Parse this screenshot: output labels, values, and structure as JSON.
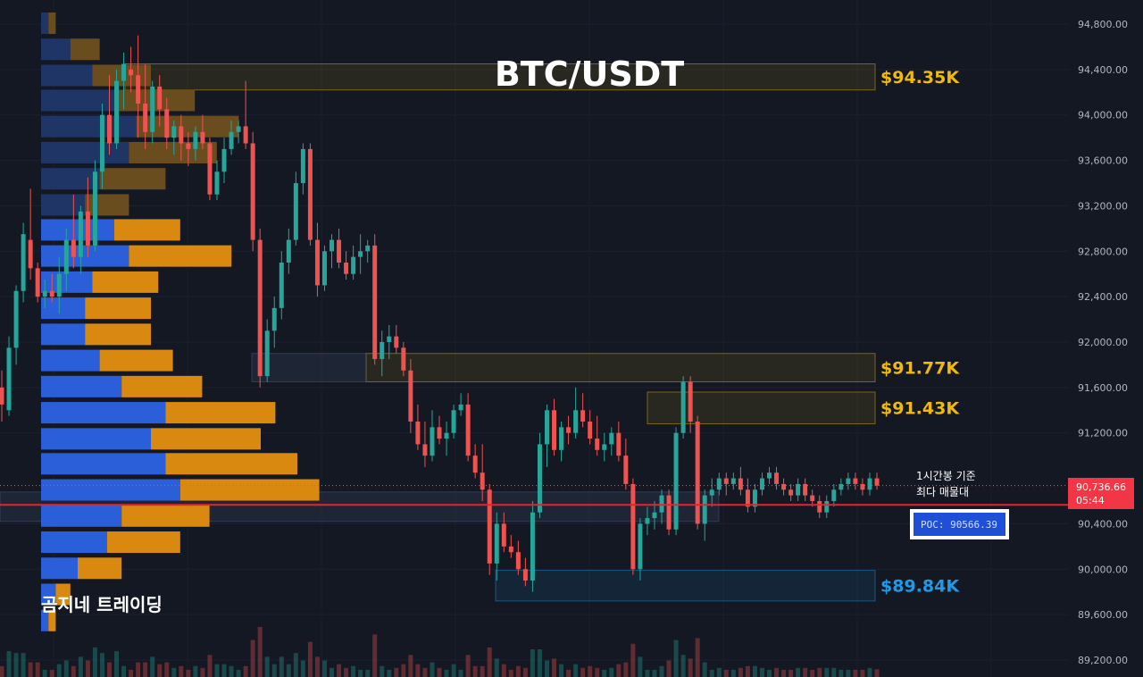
{
  "chart_data": {
    "type": "candlestick",
    "title": "BTC/USDT",
    "watermark": "곰지네 트레이딩",
    "ylim": [
      89000,
      95000
    ],
    "y_ticks": [
      {
        "value": 94800,
        "label": "94,800.00"
      },
      {
        "value": 94400,
        "label": "94,400.00"
      },
      {
        "value": 94000,
        "label": "94,000.00"
      },
      {
        "value": 93600,
        "label": "93,600.00"
      },
      {
        "value": 93200,
        "label": "93,200.00"
      },
      {
        "value": 92800,
        "label": "92,800.00"
      },
      {
        "value": 92400,
        "label": "92,400.00"
      },
      {
        "value": 92000,
        "label": "92,000.00"
      },
      {
        "value": 91600,
        "label": "91,600.00"
      },
      {
        "value": 91200,
        "label": "91,200.00"
      },
      {
        "value": 90400,
        "label": "90,400.00"
      },
      {
        "value": 90000,
        "label": "90,000.00"
      },
      {
        "value": 89600,
        "label": "89,600.00"
      },
      {
        "value": 89200,
        "label": "89,200.00"
      }
    ],
    "current_price": {
      "label": "90,736.66",
      "countdown": "05:44",
      "value": 90736.66
    },
    "poc": {
      "label": "POC: 90566.39",
      "value": 90566.39,
      "annotation_line1": "1시간봉 기준",
      "annotation_line2": "최다 매물대"
    },
    "zones": [
      {
        "label": "$94.35K",
        "top": 94450,
        "bottom": 94220,
        "color": "#f0b90b"
      },
      {
        "label": "$91.77K",
        "top": 91900,
        "bottom": 91650,
        "color": "#f0b90b"
      },
      {
        "label": "$91.43K",
        "top": 91560,
        "bottom": 91280,
        "color": "#f0b90b"
      },
      {
        "label": "$89.84K",
        "top": 89990,
        "bottom": 89720,
        "color": "#1e9be8"
      }
    ],
    "volume_profile": [
      {
        "price": 94800,
        "buy": 1,
        "sell": 1
      },
      {
        "price": 94570,
        "buy": 4,
        "sell": 4
      },
      {
        "price": 94340,
        "buy": 7,
        "sell": 8
      },
      {
        "price": 94120,
        "buy": 10,
        "sell": 11
      },
      {
        "price": 93890,
        "buy": 13,
        "sell": 14
      },
      {
        "price": 93660,
        "buy": 12,
        "sell": 12
      },
      {
        "price": 93430,
        "buy": 8,
        "sell": 9
      },
      {
        "price": 93200,
        "buy": 6,
        "sell": 6
      },
      {
        "price": 92980,
        "buy": 10,
        "sell": 9
      },
      {
        "price": 92750,
        "buy": 12,
        "sell": 14
      },
      {
        "price": 92520,
        "buy": 7,
        "sell": 9
      },
      {
        "price": 92290,
        "buy": 6,
        "sell": 9
      },
      {
        "price": 92060,
        "buy": 6,
        "sell": 9
      },
      {
        "price": 91830,
        "buy": 8,
        "sell": 10
      },
      {
        "price": 91600,
        "buy": 11,
        "sell": 11
      },
      {
        "price": 91370,
        "buy": 17,
        "sell": 15
      },
      {
        "price": 91140,
        "buy": 15,
        "sell": 15
      },
      {
        "price": 90920,
        "buy": 17,
        "sell": 18
      },
      {
        "price": 90690,
        "buy": 19,
        "sell": 19
      },
      {
        "price": 90460,
        "buy": 11,
        "sell": 12
      },
      {
        "price": 90230,
        "buy": 9,
        "sell": 10
      },
      {
        "price": 90000,
        "buy": 5,
        "sell": 6
      },
      {
        "price": 89770,
        "buy": 2,
        "sell": 2
      },
      {
        "price": 89540,
        "buy": 1,
        "sell": 1
      }
    ],
    "candles": [
      [
        91600,
        91750,
        91300,
        91450
      ],
      [
        91400,
        92050,
        91350,
        91950
      ],
      [
        91950,
        92500,
        91800,
        92450
      ],
      [
        92450,
        93050,
        92350,
        92950
      ],
      [
        92900,
        93350,
        92550,
        92650
      ],
      [
        92650,
        92700,
        92350,
        92400
      ],
      [
        92400,
        92550,
        92300,
        92450
      ],
      [
        92450,
        92600,
        92350,
        92400
      ],
      [
        92400,
        92750,
        92250,
        92600
      ],
      [
        92600,
        93000,
        92450,
        92900
      ],
      [
        92900,
        93300,
        92650,
        92750
      ],
      [
        92750,
        93200,
        92600,
        93150
      ],
      [
        93150,
        93450,
        92750,
        92850
      ],
      [
        92850,
        93600,
        92800,
        93500
      ],
      [
        93500,
        94100,
        93350,
        94000
      ],
      [
        94000,
        94350,
        93650,
        93750
      ],
      [
        93750,
        94400,
        93700,
        94300
      ],
      [
        94300,
        94550,
        94050,
        94450
      ],
      [
        94400,
        94600,
        94200,
        94350
      ],
      [
        94350,
        94700,
        93800,
        94100
      ],
      [
        94100,
        94450,
        93700,
        93850
      ],
      [
        93850,
        94300,
        93750,
        94250
      ],
      [
        94250,
        94350,
        93900,
        94050
      ],
      [
        94050,
        94150,
        93700,
        93800
      ],
      [
        93800,
        93950,
        93650,
        93900
      ],
      [
        93900,
        94000,
        93600,
        93750
      ],
      [
        93750,
        93850,
        93550,
        93700
      ],
      [
        93700,
        93900,
        93600,
        93850
      ],
      [
        93850,
        94000,
        93700,
        93750
      ],
      [
        93750,
        93800,
        93250,
        93300
      ],
      [
        93300,
        93600,
        93250,
        93500
      ],
      [
        93500,
        93800,
        93400,
        93700
      ],
      [
        93700,
        93950,
        93650,
        93850
      ],
      [
        93850,
        93950,
        93750,
        93900
      ],
      [
        93900,
        94300,
        93700,
        93750
      ],
      [
        93750,
        93850,
        92800,
        92900
      ],
      [
        92900,
        93000,
        91600,
        91700
      ],
      [
        91700,
        92200,
        91650,
        92100
      ],
      [
        92100,
        92400,
        91950,
        92300
      ],
      [
        92300,
        92800,
        92200,
        92700
      ],
      [
        92700,
        93000,
        92600,
        92900
      ],
      [
        92900,
        93500,
        92850,
        93400
      ],
      [
        93400,
        93750,
        93300,
        93700
      ],
      [
        93700,
        93750,
        92850,
        92900
      ],
      [
        92900,
        93050,
        92400,
        92500
      ],
      [
        92500,
        92850,
        92450,
        92800
      ],
      [
        92800,
        92950,
        92650,
        92900
      ],
      [
        92900,
        93000,
        92650,
        92700
      ],
      [
        92700,
        92800,
        92550,
        92600
      ],
      [
        92600,
        92850,
        92550,
        92750
      ],
      [
        92750,
        92950,
        92600,
        92800
      ],
      [
        92800,
        92900,
        92700,
        92850
      ],
      [
        92850,
        92950,
        91800,
        91850
      ],
      [
        91850,
        92100,
        91700,
        92000
      ],
      [
        92000,
        92150,
        91850,
        92050
      ],
      [
        92050,
        92150,
        91900,
        91950
      ],
      [
        91950,
        92000,
        91700,
        91750
      ],
      [
        91750,
        91850,
        91200,
        91300
      ],
      [
        91300,
        91450,
        91050,
        91100
      ],
      [
        91100,
        91300,
        90900,
        91000
      ],
      [
        91000,
        91400,
        90950,
        91250
      ],
      [
        91250,
        91350,
        91100,
        91150
      ],
      [
        91150,
        91300,
        91000,
        91200
      ],
      [
        91200,
        91450,
        91150,
        91400
      ],
      [
        91400,
        91550,
        91350,
        91450
      ],
      [
        91450,
        91550,
        90950,
        91000
      ],
      [
        91000,
        91100,
        90800,
        90850
      ],
      [
        90850,
        91100,
        90600,
        90700
      ],
      [
        90700,
        90750,
        89950,
        90050
      ],
      [
        90050,
        90500,
        89900,
        90400
      ],
      [
        90400,
        90500,
        90150,
        90200
      ],
      [
        90200,
        90300,
        90100,
        90150
      ],
      [
        90150,
        90250,
        89950,
        90000
      ],
      [
        90000,
        90100,
        89850,
        89900
      ],
      [
        89900,
        90600,
        89800,
        90500
      ],
      [
        90500,
        91200,
        90450,
        91100
      ],
      [
        91100,
        91450,
        90900,
        91400
      ],
      [
        91400,
        91500,
        91000,
        91050
      ],
      [
        91050,
        91300,
        90950,
        91250
      ],
      [
        91250,
        91350,
        91100,
        91200
      ],
      [
        91200,
        91600,
        91150,
        91400
      ],
      [
        91400,
        91550,
        91250,
        91300
      ],
      [
        91300,
        91400,
        91100,
        91150
      ],
      [
        91150,
        91350,
        91000,
        91050
      ],
      [
        91050,
        91200,
        90950,
        91100
      ],
      [
        91100,
        91250,
        91000,
        91200
      ],
      [
        91200,
        91300,
        90950,
        91000
      ],
      [
        91000,
        91150,
        90700,
        90750
      ],
      [
        90750,
        90800,
        89950,
        90000
      ],
      [
        90000,
        90450,
        89900,
        90400
      ],
      [
        90400,
        90550,
        90300,
        90450
      ],
      [
        90450,
        90600,
        90350,
        90500
      ],
      [
        90500,
        90700,
        90400,
        90650
      ],
      [
        90650,
        90700,
        90300,
        90350
      ],
      [
        90350,
        91250,
        90300,
        91200
      ],
      [
        91200,
        91700,
        91150,
        91650
      ],
      [
        91650,
        91700,
        91200,
        91300
      ],
      [
        91300,
        91350,
        90350,
        90400
      ],
      [
        90400,
        90700,
        90250,
        90650
      ],
      [
        90650,
        90800,
        90550,
        90700
      ],
      [
        90700,
        90850,
        90650,
        90800
      ],
      [
        90800,
        90850,
        90650,
        90750
      ],
      [
        90750,
        90850,
        90700,
        90800
      ],
      [
        90800,
        90900,
        90650,
        90700
      ],
      [
        90700,
        90800,
        90500,
        90550
      ],
      [
        90550,
        90750,
        90500,
        90700
      ],
      [
        90700,
        90850,
        90650,
        90800
      ],
      [
        90800,
        90900,
        90750,
        90850
      ],
      [
        90850,
        90900,
        90700,
        90750
      ],
      [
        90750,
        90800,
        90650,
        90700
      ],
      [
        90700,
        90750,
        90600,
        90650
      ],
      [
        90650,
        90800,
        90600,
        90750
      ],
      [
        90750,
        90800,
        90600,
        90650
      ],
      [
        90650,
        90700,
        90550,
        90600
      ],
      [
        90600,
        90650,
        90450,
        90500
      ],
      [
        90500,
        90650,
        90450,
        90600
      ],
      [
        90600,
        90750,
        90550,
        90700
      ],
      [
        90700,
        90800,
        90650,
        90750
      ],
      [
        90750,
        90850,
        90700,
        90800
      ],
      [
        90800,
        90850,
        90700,
        90750
      ],
      [
        90750,
        90800,
        90650,
        90700
      ],
      [
        90700,
        90850,
        90650,
        90800
      ],
      [
        90800,
        90850,
        90700,
        90736
      ]
    ]
  }
}
